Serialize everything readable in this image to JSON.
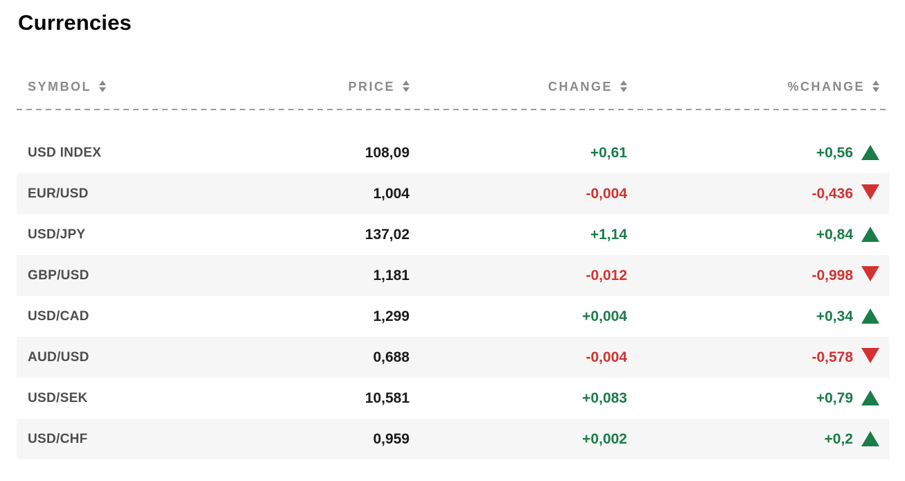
{
  "page": {
    "title": "Currencies"
  },
  "colors": {
    "up_green": "#1b7d49",
    "down_red": "#d23232",
    "header_gray": "#8a8a8a",
    "alt_row_bg": "#f6f6f6",
    "symbol_gray": "#4d4d4d",
    "price_black": "#1a1a1a"
  },
  "table": {
    "columns": [
      {
        "key": "symbol",
        "label": "SYMBOL"
      },
      {
        "key": "price",
        "label": "PRICE"
      },
      {
        "key": "change",
        "label": "CHANGE"
      },
      {
        "key": "pct_change",
        "label": "%CHANGE"
      }
    ],
    "rows": [
      {
        "symbol": "USD INDEX",
        "price": "108,09",
        "change": "+0,61",
        "pct_change": "+0,56",
        "direction": "up"
      },
      {
        "symbol": "EUR/USD",
        "price": "1,004",
        "change": "-0,004",
        "pct_change": "-0,436",
        "direction": "down"
      },
      {
        "symbol": "USD/JPY",
        "price": "137,02",
        "change": "+1,14",
        "pct_change": "+0,84",
        "direction": "up"
      },
      {
        "symbol": "GBP/USD",
        "price": "1,181",
        "change": "-0,012",
        "pct_change": "-0,998",
        "direction": "down"
      },
      {
        "symbol": "USD/CAD",
        "price": "1,299",
        "change": "+0,004",
        "pct_change": "+0,34",
        "direction": "up"
      },
      {
        "symbol": "AUD/USD",
        "price": "0,688",
        "change": "-0,004",
        "pct_change": "-0,578",
        "direction": "down"
      },
      {
        "symbol": "USD/SEK",
        "price": "10,581",
        "change": "+0,083",
        "pct_change": "+0,79",
        "direction": "up"
      },
      {
        "symbol": "USD/CHF",
        "price": "0,959",
        "change": "+0,002",
        "pct_change": "+0,2",
        "direction": "up"
      }
    ]
  }
}
